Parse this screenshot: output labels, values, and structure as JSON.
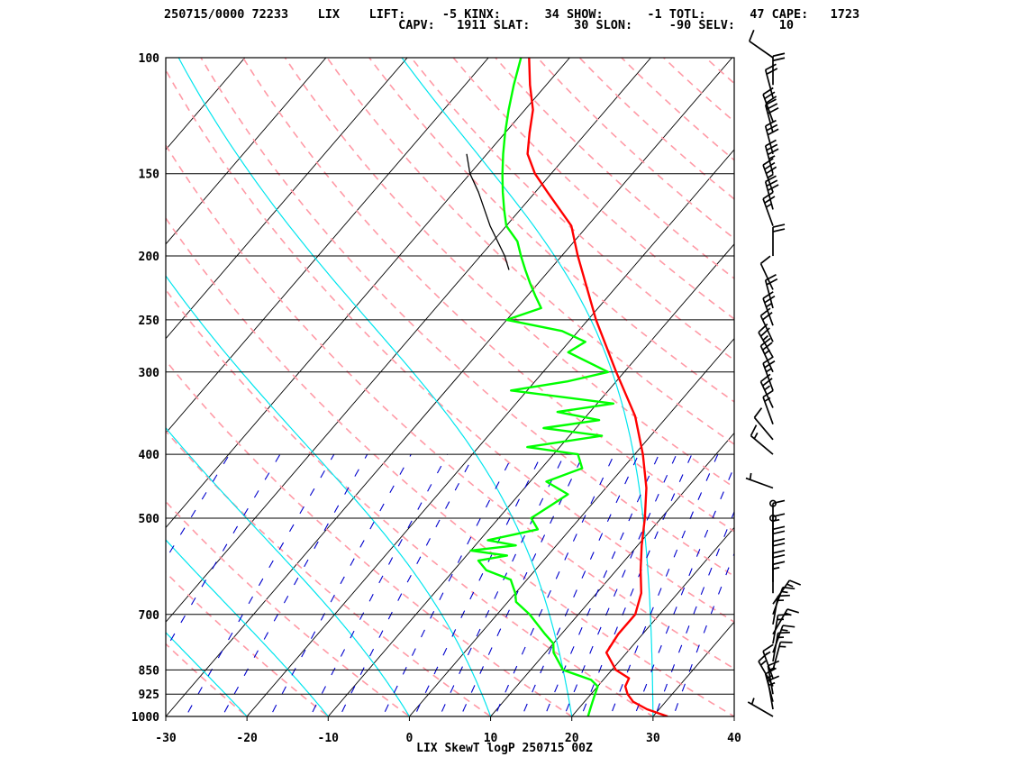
{
  "header": {
    "line1": "250715/0000 72233    LIX    LIFT:     -5 KINX:      34 SHOW:      -1 TOTL:      47 CAPE:   1723",
    "line2": "                                CAPV:   1911 SLAT:      30 SLON:     -90 SELV:      10"
  },
  "chart_data": {
    "type": "line",
    "title": "LIX SkewT logP 250715 00Z",
    "xlabel": "",
    "ylabel": "",
    "xlim": [
      -30,
      40
    ],
    "ylim": [
      1000,
      100
    ],
    "y_scale": "log (inverted)",
    "x_ticks": [
      -30,
      -20,
      -10,
      0,
      10,
      20,
      30,
      40
    ],
    "pressure_levels": [
      1000,
      925,
      850,
      700,
      500,
      400,
      300,
      250,
      200,
      150,
      100
    ],
    "grid": true,
    "colors": {
      "temperature": "#ff0000",
      "dewpoint": "#00ff00",
      "isotherms": "#000000",
      "dry_adiabats": "#ff9aa6",
      "moist_adiabats": "#00e5ee",
      "mixing_ratio": "#0000cc",
      "parcel": "#000000"
    },
    "series": [
      {
        "key": "temperature",
        "values": [
          [
            1000,
            31.8
          ],
          [
            975,
            28.5
          ],
          [
            950,
            26
          ],
          [
            925,
            24.5
          ],
          [
            900,
            23.4
          ],
          [
            875,
            23
          ],
          [
            850,
            20.5
          ],
          [
            800,
            17.5
          ],
          [
            750,
            17
          ],
          [
            700,
            17
          ],
          [
            650,
            15.5
          ],
          [
            600,
            13
          ],
          [
            550,
            10.5
          ],
          [
            500,
            8
          ],
          [
            450,
            5
          ],
          [
            400,
            1
          ],
          [
            350,
            -4
          ],
          [
            300,
            -11
          ],
          [
            250,
            -19
          ],
          [
            200,
            -28
          ],
          [
            180,
            -32
          ],
          [
            160,
            -38.5
          ],
          [
            150,
            -42
          ],
          [
            140,
            -45
          ],
          [
            130,
            -47
          ],
          [
            120,
            -49
          ],
          [
            110,
            -52
          ],
          [
            100,
            -55
          ]
        ]
      },
      {
        "key": "dewpoint",
        "values": [
          [
            1000,
            22
          ],
          [
            975,
            21.5
          ],
          [
            950,
            21
          ],
          [
            925,
            20.5
          ],
          [
            900,
            20
          ],
          [
            880,
            18.5
          ],
          [
            850,
            14
          ],
          [
            800,
            11
          ],
          [
            775,
            10
          ],
          [
            750,
            8
          ],
          [
            700,
            4
          ],
          [
            670,
            1
          ],
          [
            650,
            0
          ],
          [
            620,
            -2
          ],
          [
            600,
            -6
          ],
          [
            580,
            -8
          ],
          [
            570,
            -5
          ],
          [
            560,
            -10
          ],
          [
            550,
            -5
          ],
          [
            540,
            -9
          ],
          [
            520,
            -4
          ],
          [
            500,
            -6
          ],
          [
            480,
            -5
          ],
          [
            460,
            -4
          ],
          [
            440,
            -8
          ],
          [
            420,
            -5
          ],
          [
            400,
            -7
          ],
          [
            390,
            -14
          ],
          [
            375,
            -6
          ],
          [
            365,
            -14
          ],
          [
            355,
            -8
          ],
          [
            345,
            -14
          ],
          [
            335,
            -8
          ],
          [
            320,
            -22
          ],
          [
            310,
            -16
          ],
          [
            300,
            -12
          ],
          [
            280,
            -19
          ],
          [
            270,
            -18
          ],
          [
            260,
            -22
          ],
          [
            250,
            -30
          ],
          [
            240,
            -27
          ],
          [
            230,
            -29
          ],
          [
            220,
            -31
          ],
          [
            210,
            -33
          ],
          [
            200,
            -35
          ],
          [
            190,
            -37
          ],
          [
            180,
            -40
          ],
          [
            170,
            -42
          ],
          [
            160,
            -44
          ],
          [
            150,
            -46
          ],
          [
            140,
            -48
          ],
          [
            130,
            -50
          ],
          [
            120,
            -52
          ],
          [
            110,
            -54
          ],
          [
            100,
            -56
          ]
        ]
      },
      {
        "key": "parcel",
        "values": [
          [
            210,
            -35
          ],
          [
            200,
            -37
          ],
          [
            180,
            -42
          ],
          [
            160,
            -47
          ],
          [
            150,
            -50
          ],
          [
            140,
            -52.5
          ]
        ]
      }
    ],
    "wind_barbs": [
      {
        "p": 1000,
        "dir": 300,
        "spd": 5
      },
      {
        "p": 975,
        "dir": 350,
        "spd": 15
      },
      {
        "p": 950,
        "dir": 345,
        "spd": 15
      },
      {
        "p": 925,
        "dir": 350,
        "spd": 15
      },
      {
        "p": 900,
        "dir": 330,
        "spd": 15
      },
      {
        "p": 875,
        "dir": 340,
        "spd": 15
      },
      {
        "p": 850,
        "dir": 15,
        "spd": 15
      },
      {
        "p": 825,
        "dir": 10,
        "spd": 15
      },
      {
        "p": 800,
        "dir": 20,
        "spd": 15
      },
      {
        "p": 775,
        "dir": 10,
        "spd": 15
      },
      {
        "p": 750,
        "dir": 30,
        "spd": 15
      },
      {
        "p": 725,
        "dir": 10,
        "spd": 15
      },
      {
        "p": 700,
        "dir": 20,
        "spd": 15
      },
      {
        "p": 675,
        "dir": 35,
        "spd": 15
      },
      {
        "p": 650,
        "dir": 0,
        "spd": 15
      },
      {
        "p": 625,
        "dir": 0,
        "spd": 20
      },
      {
        "p": 600,
        "dir": 0,
        "spd": 20
      },
      {
        "p": 575,
        "dir": 0,
        "spd": 20
      },
      {
        "p": 550,
        "dir": 0,
        "spd": 15
      },
      {
        "p": 525,
        "dir": 0,
        "spd": 10
      },
      {
        "p": 500,
        "dir": 0,
        "spd": 0
      },
      {
        "p": 475,
        "dir": 0,
        "spd": 0
      },
      {
        "p": 450,
        "dir": 290,
        "spd": 5
      },
      {
        "p": 400,
        "dir": 310,
        "spd": 15
      },
      {
        "p": 380,
        "dir": 320,
        "spd": 10
      },
      {
        "p": 360,
        "dir": 340,
        "spd": 15
      },
      {
        "p": 340,
        "dir": 335,
        "spd": 25
      },
      {
        "p": 320,
        "dir": 340,
        "spd": 25
      },
      {
        "p": 300,
        "dir": 335,
        "spd": 25
      },
      {
        "p": 285,
        "dir": 330,
        "spd": 25
      },
      {
        "p": 270,
        "dir": 335,
        "spd": 20
      },
      {
        "p": 255,
        "dir": 340,
        "spd": 25
      },
      {
        "p": 240,
        "dir": 345,
        "spd": 20
      },
      {
        "p": 225,
        "dir": 335,
        "spd": 10
      },
      {
        "p": 200,
        "dir": 0,
        "spd": 20
      },
      {
        "p": 180,
        "dir": 340,
        "spd": 25
      },
      {
        "p": 170,
        "dir": 345,
        "spd": 30
      },
      {
        "p": 160,
        "dir": 340,
        "spd": 35
      },
      {
        "p": 150,
        "dir": 345,
        "spd": 35
      },
      {
        "p": 140,
        "dir": 345,
        "spd": 30
      },
      {
        "p": 130,
        "dir": 345,
        "spd": 30
      },
      {
        "p": 125,
        "dir": 340,
        "spd": 30
      },
      {
        "p": 115,
        "dir": 345,
        "spd": 20
      },
      {
        "p": 110,
        "dir": 0,
        "spd": 20
      },
      {
        "p": 100,
        "dir": 305,
        "spd": 10
      }
    ]
  }
}
